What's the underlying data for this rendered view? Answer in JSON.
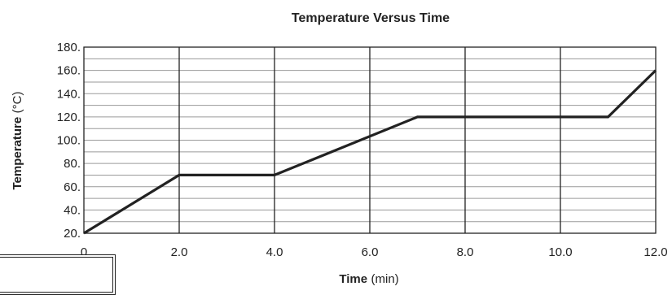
{
  "chart_data": {
    "type": "line",
    "title": "Temperature Versus Time",
    "xlabel_bold": "Time",
    "xlabel_unit": "(min)",
    "ylabel_bold": "Temperature",
    "ylabel_unit": "(°C)",
    "xlim": [
      0,
      12
    ],
    "ylim": [
      20,
      180
    ],
    "x_tick_labels": [
      "0",
      "2.0",
      "4.0",
      "6.0",
      "8.0",
      "10.0",
      "12.0"
    ],
    "x_ticks": [
      0,
      2,
      4,
      6,
      8,
      10,
      12
    ],
    "y_tick_labels": [
      "20.",
      "40.",
      "60.",
      "80.",
      "100.",
      "120.",
      "140.",
      "160.",
      "180."
    ],
    "y_ticks": [
      20,
      40,
      60,
      80,
      100,
      120,
      140,
      160,
      180
    ],
    "grid": "horizontal lines every 10 °C, vertical lines every 2 min",
    "series": [
      {
        "x": [
          0,
          2,
          4,
          7,
          11,
          12
        ],
        "y": [
          20,
          70,
          70,
          120,
          120,
          160
        ]
      }
    ]
  }
}
